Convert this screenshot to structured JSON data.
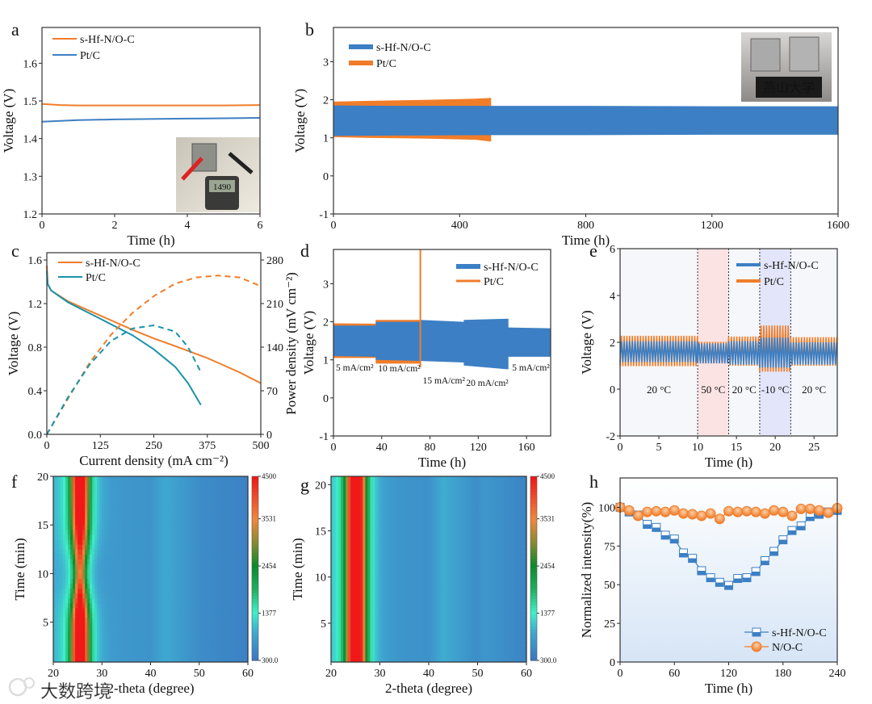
{
  "chart_data": [
    {
      "panel": "a",
      "type": "line",
      "xlabel": "Time (h)",
      "ylabel": "Voltage (V)",
      "xlim": [
        0,
        6
      ],
      "ylim": [
        1.2,
        1.695
      ],
      "xticks": [
        "0",
        "2",
        "4",
        "6"
      ],
      "yticks": [
        "1.2",
        "1.3",
        "1.4",
        "1.5",
        "1.6"
      ],
      "legend": "top-left",
      "series": [
        {
          "name": "s-Hf-N/O-C",
          "color": "#f07d2a",
          "x": [
            0,
            0.5,
            1,
            2,
            3,
            4,
            5,
            6
          ],
          "y": [
            1.492,
            1.489,
            1.488,
            1.488,
            1.488,
            1.488,
            1.488,
            1.489
          ]
        },
        {
          "name": "Pt/C",
          "color": "#3c7fc4",
          "x": [
            0,
            0.5,
            1,
            2,
            3,
            4,
            5,
            6
          ],
          "y": [
            1.445,
            1.447,
            1.449,
            1.451,
            1.452,
            1.453,
            1.454,
            1.455
          ]
        }
      ],
      "inset_display": "1490"
    },
    {
      "panel": "b",
      "type": "area",
      "xlabel": "Time (h)",
      "ylabel": "Voltage (V)",
      "xlim": [
        0,
        1600
      ],
      "ylim": [
        -1,
        3.9
      ],
      "xticks": [
        "0",
        "400",
        "800",
        "1200",
        "1600"
      ],
      "yticks": [
        "-1",
        "0",
        "1",
        "2",
        "3"
      ],
      "legend": "top-left",
      "series": [
        {
          "name": "s-Hf-N/O-C",
          "color": "#3c7fc4",
          "x": [
            0,
            200,
            500,
            800,
            1200,
            1600
          ],
          "upper": [
            1.85,
            1.84,
            1.84,
            1.84,
            1.83,
            1.83
          ],
          "lower": [
            1.05,
            1.06,
            1.07,
            1.07,
            1.08,
            1.08
          ]
        },
        {
          "name": "Pt/C",
          "color": "#f07d2a",
          "x": [
            0,
            100,
            300,
            450,
            500
          ],
          "upper": [
            1.95,
            1.97,
            2.0,
            2.03,
            2.05
          ],
          "lower": [
            1.02,
            1.0,
            0.98,
            0.95,
            0.9
          ]
        }
      ],
      "inset_sign": "燕山大学"
    },
    {
      "panel": "c",
      "type": "line",
      "xlabel": "Current density (mA cm⁻²)",
      "ylabel": "Voltage (V)",
      "ylabel_right": "Power density (mV cm⁻²)",
      "xlim": [
        0,
        500
      ],
      "ylim": [
        0,
        1.667
      ],
      "ylim_right": [
        0,
        291.7
      ],
      "xticks": [
        "0",
        "125",
        "250",
        "375",
        "500"
      ],
      "yticks": [
        "0.0",
        "0.4",
        "0.8",
        "1.2",
        "1.6"
      ],
      "yticks_right": [
        "0",
        "70",
        "140",
        "210",
        "280"
      ],
      "legend": "top-left",
      "series": [
        {
          "name": "s-Hf-N/O-C",
          "color": "#f07d2a",
          "axis": "left",
          "style": "solid",
          "x": [
            0,
            2,
            10,
            50,
            125,
            200,
            250,
            300,
            375,
            450,
            500
          ],
          "y": [
            1.55,
            1.38,
            1.32,
            1.22,
            1.09,
            0.96,
            0.88,
            0.81,
            0.7,
            0.57,
            0.47
          ]
        },
        {
          "name": "Pt/C",
          "color": "#1a93a8",
          "axis": "left",
          "style": "solid",
          "x": [
            0,
            2,
            10,
            50,
            125,
            200,
            250,
            300,
            330,
            360
          ],
          "y": [
            1.5,
            1.38,
            1.32,
            1.21,
            1.06,
            0.91,
            0.78,
            0.62,
            0.47,
            0.27
          ]
        },
        {
          "name": "s-Hf-N/O-C power",
          "color": "#f07d2a",
          "axis": "right",
          "style": "dashed",
          "x": [
            0,
            50,
            100,
            150,
            200,
            250,
            300,
            350,
            400,
            450,
            500
          ],
          "y": [
            0,
            58,
            115,
            160,
            195,
            222,
            242,
            252,
            255,
            252,
            238
          ]
        },
        {
          "name": "Pt/C power",
          "color": "#1a93a8",
          "axis": "right",
          "style": "dashed",
          "x": [
            0,
            50,
            100,
            150,
            200,
            250,
            300,
            330,
            360
          ],
          "y": [
            0,
            60,
            112,
            150,
            170,
            175,
            165,
            140,
            100
          ]
        }
      ]
    },
    {
      "panel": "d",
      "type": "area",
      "xlabel": "Time (h)",
      "ylabel": "Voltage (V)",
      "xlim": [
        0,
        180
      ],
      "ylim": [
        -1,
        3.9
      ],
      "xticks": [
        "0",
        "40",
        "80",
        "120",
        "160"
      ],
      "yticks": [
        "-1",
        "0",
        "1",
        "2",
        "3"
      ],
      "legend": "top-right",
      "series": [
        {
          "name": "s-Hf-N/O-C",
          "color": "#3c7fc4",
          "x": [
            0,
            35,
            35,
            72,
            72,
            108,
            108,
            145,
            145,
            180
          ],
          "upper": [
            1.9,
            1.9,
            2.0,
            2.0,
            2.05,
            2.0,
            2.05,
            2.08,
            1.85,
            1.83
          ],
          "lower": [
            1.1,
            1.08,
            1.0,
            0.97,
            0.97,
            0.93,
            0.85,
            0.75,
            1.08,
            1.08
          ]
        },
        {
          "name": "Pt/C",
          "color": "#f07d2a",
          "x": [
            0,
            35,
            35,
            72
          ],
          "upper": [
            1.96,
            1.95,
            2.05,
            2.05
          ],
          "lower": [
            1.05,
            1.05,
            0.9,
            0.9
          ],
          "failure_spike": {
            "x": 72,
            "y": [
              0.8,
              3.9
            ]
          }
        }
      ],
      "annotations": [
        {
          "text": "5 mA/cm²",
          "x": 0,
          "y": 0.72
        },
        {
          "text": "10 mA/cm²",
          "x": 35,
          "y": 0.7
        },
        {
          "text": "15 mA/cm²",
          "x": 72,
          "y": 0.38
        },
        {
          "text": "20 mA/cm²",
          "x": 108,
          "y": 0.32
        },
        {
          "text": "5 mA/cm²",
          "x": 146,
          "y": 0.72
        }
      ]
    },
    {
      "panel": "e",
      "type": "line",
      "xlabel": "Time (h)",
      "ylabel": "Voltage (V)",
      "xlim": [
        0,
        28
      ],
      "ylim": [
        -2,
        6
      ],
      "xticks": [
        "0",
        "5",
        "10",
        "15",
        "20",
        "25"
      ],
      "yticks": [
        "-2",
        "0",
        "2",
        "4",
        "6"
      ],
      "legend": "top-right",
      "cycle_period_h": 0.35,
      "regions": [
        {
          "label": "20 °C",
          "t0": 0,
          "t1": 10,
          "shade": "none"
        },
        {
          "label": "50 °C",
          "t0": 10,
          "t1": 14,
          "shade": "#fbe3e3"
        },
        {
          "label": "20 °C",
          "t0": 14,
          "t1": 18,
          "shade": "none"
        },
        {
          "label": "-10 °C",
          "t0": 18,
          "t1": 22,
          "shade": "#e3e6fa"
        },
        {
          "label": "20 °C",
          "t0": 22,
          "t1": 28,
          "shade": "none"
        }
      ],
      "series": [
        {
          "name": "s-Hf-N/O-C",
          "color": "#3c7fc4",
          "low": [
            1.15,
            1.1,
            1.05,
            0.92,
            1.05
          ],
          "high": [
            2.05,
            1.95,
            2.05,
            2.2,
            2.0
          ]
        },
        {
          "name": "Pt/C",
          "color": "#f07d2a",
          "low": [
            0.98,
            1.1,
            1.0,
            0.75,
            1.0
          ],
          "high": [
            2.28,
            2.02,
            2.25,
            2.72,
            2.22
          ]
        }
      ]
    },
    {
      "panel": "f",
      "type": "heatmap",
      "xlabel": "2-theta (degree)",
      "ylabel": "Time (min)",
      "xlim": [
        20,
        60
      ],
      "ylim": [
        0.9,
        20
      ],
      "xticks": [
        "20",
        "30",
        "40",
        "50",
        "60"
      ],
      "yticks": [
        "5",
        "10",
        "15",
        "20"
      ],
      "colorbar": {
        "range": [
          300,
          4500
        ],
        "ticks": [
          "300.0",
          "1377",
          "2454",
          "3531",
          "4500"
        ]
      },
      "main_peak": {
        "two_theta": 25.5,
        "time": [
          1,
          5,
          8,
          10,
          12,
          15,
          20
        ],
        "intensity": [
          4500,
          4400,
          3300,
          2500,
          3000,
          3900,
          4500
        ],
        "width_deg": 1.7
      },
      "background": {
        "two_theta": [
          20,
          30,
          40,
          43,
          50,
          60
        ],
        "intensity": [
          900,
          720,
          650,
          900,
          560,
          420
        ]
      }
    },
    {
      "panel": "g",
      "type": "heatmap",
      "xlabel": "2-theta (degree)",
      "ylabel": "Time (min)",
      "xlim": [
        20,
        60
      ],
      "ylim": [
        0.8,
        20.9
      ],
      "xticks": [
        "20",
        "30",
        "40",
        "50",
        "60"
      ],
      "yticks": [
        "5",
        "10",
        "15",
        "20"
      ],
      "colorbar": {
        "range": [
          300,
          4500
        ],
        "ticks": [
          "300.0",
          "1377",
          "2454",
          "3531",
          "4500"
        ]
      },
      "main_peak": {
        "two_theta": 25.1,
        "time": [
          1,
          20
        ],
        "intensity": [
          4500,
          4500
        ],
        "width_deg": 1.9
      },
      "background": {
        "two_theta": [
          20,
          30,
          40,
          43,
          50,
          51,
          60
        ],
        "intensity": [
          900,
          700,
          620,
          950,
          560,
          700,
          450
        ]
      }
    },
    {
      "panel": "h",
      "type": "line",
      "xlabel": "Time (h)",
      "ylabel": "Normalized intensity(%)",
      "xlim": [
        0,
        240
      ],
      "ylim": [
        0,
        119
      ],
      "xticks": [
        "0",
        "60",
        "120",
        "180",
        "240"
      ],
      "yticks": [
        "0",
        "25",
        "50",
        "75",
        "100"
      ],
      "legend": "bottom-right",
      "x": [
        0,
        10,
        20,
        30,
        40,
        50,
        60,
        70,
        80,
        90,
        100,
        110,
        120,
        130,
        140,
        150,
        160,
        170,
        180,
        190,
        200,
        210,
        220,
        230,
        240
      ],
      "series": [
        {
          "name": "s-Hf-N/O-C",
          "color": "#3c7fc4",
          "marker": "square",
          "y": [
            100,
            97,
            95,
            89,
            87,
            82,
            79.5,
            70.5,
            67,
            59,
            54.5,
            51.5,
            49.5,
            54,
            54.5,
            58.5,
            65.5,
            71.5,
            79,
            85,
            88,
            94,
            95.5,
            97,
            98
          ]
        },
        {
          "name": "N/O-C",
          "color": "#f07d2a",
          "marker": "circle",
          "y": [
            100,
            98,
            94.5,
            97,
            97.5,
            97,
            98,
            96,
            95.5,
            94.5,
            96,
            92.5,
            97.5,
            97,
            97.5,
            97,
            96,
            98,
            97,
            94.5,
            99,
            99,
            98,
            96.5,
            99.5
          ]
        }
      ]
    }
  ],
  "panel_letters": [
    "a",
    "b",
    "c",
    "d",
    "e",
    "f",
    "g",
    "h"
  ],
  "watermark": "大数跨境"
}
